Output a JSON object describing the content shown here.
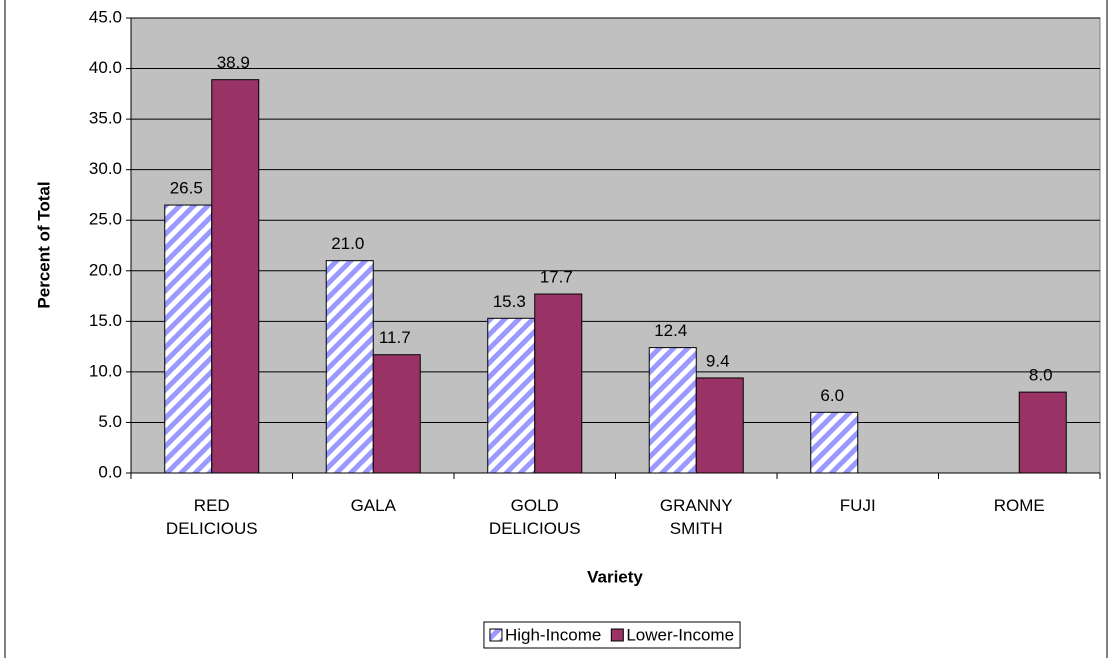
{
  "chart_data": {
    "type": "bar",
    "x_label": "Variety",
    "y_label": "Percent of Total",
    "categories": [
      "RED DELICIOUS",
      "GALA",
      "GOLD DELICIOUS",
      "GRANNY SMITH",
      "FUJI",
      "ROME"
    ],
    "series": [
      {
        "name": "High-Income",
        "color": "#9999ff",
        "pattern": "diagonal-hatch",
        "values": [
          26.5,
          21.0,
          15.3,
          12.4,
          6.0,
          null
        ],
        "value_labels": [
          "26.5",
          "21.0",
          "15.3",
          "12.4",
          "6.0",
          null
        ]
      },
      {
        "name": "Lower-Income",
        "color": "#993366",
        "values": [
          38.9,
          11.7,
          17.7,
          9.4,
          null,
          8.0
        ],
        "value_labels": [
          "38.9",
          "11.7",
          "17.7",
          "9.4",
          null,
          "8.0"
        ]
      }
    ],
    "ylim": [
      0,
      45
    ],
    "yticks": [
      {
        "value": 0,
        "label": "0.0"
      },
      {
        "value": 5,
        "label": "5.0"
      },
      {
        "value": 10,
        "label": "10.0"
      },
      {
        "value": 15,
        "label": "15.0"
      },
      {
        "value": 20,
        "label": "20.0"
      },
      {
        "value": 25,
        "label": "25.0"
      },
      {
        "value": 30,
        "label": "30.0"
      },
      {
        "value": 35,
        "label": "35.0"
      },
      {
        "value": 40,
        "label": "40.0"
      },
      {
        "value": 45,
        "label": "45.0"
      }
    ],
    "grid": true,
    "legend": "bottom"
  }
}
